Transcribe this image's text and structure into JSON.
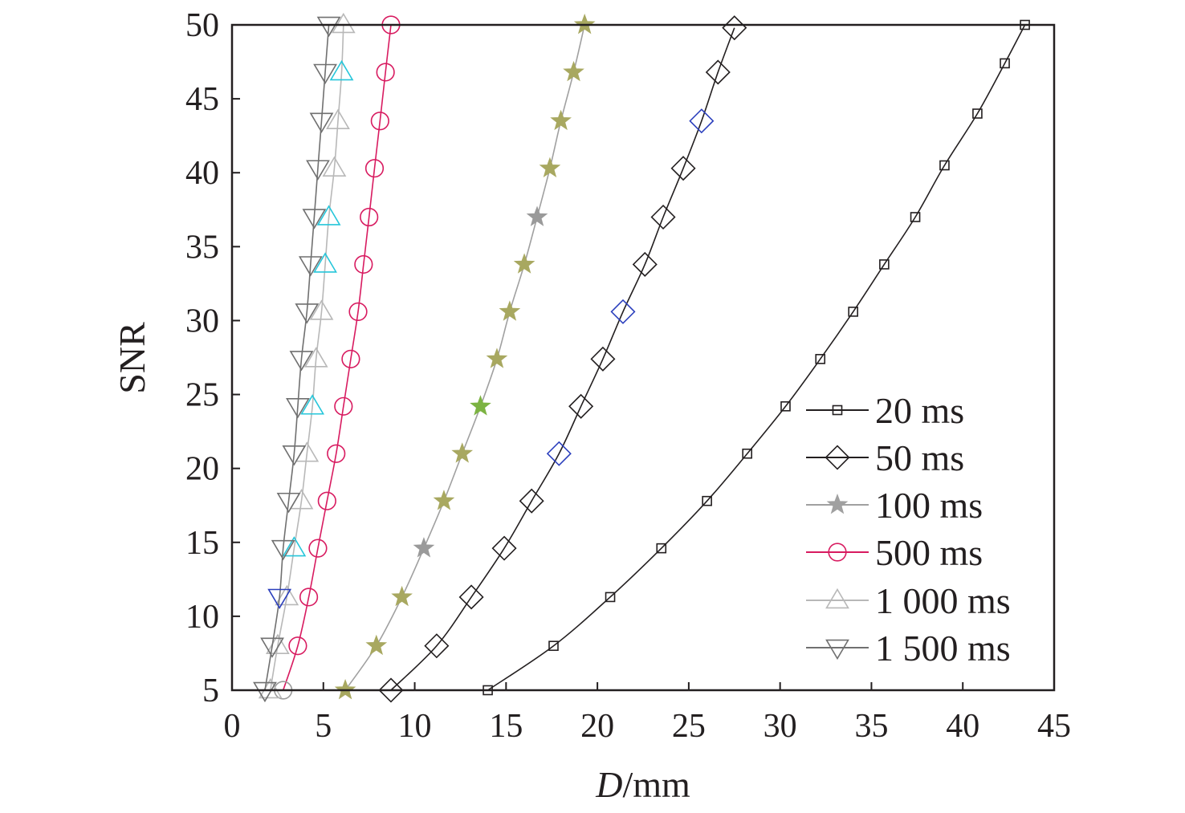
{
  "chart_data": {
    "type": "line",
    "xlabel_italic": "D",
    "xlabel_rest": "/mm",
    "ylabel": "SNR",
    "xlim": [
      0,
      45
    ],
    "ylim": [
      5,
      50
    ],
    "x_ticks": [
      0,
      5,
      10,
      15,
      20,
      25,
      30,
      35,
      40,
      45
    ],
    "y_ticks": [
      5,
      10,
      15,
      20,
      25,
      30,
      35,
      40,
      45,
      50
    ],
    "legend_position": "lower-right",
    "series": [
      {
        "name": "20 ms",
        "marker": "square",
        "color": "#231f20",
        "x": [
          14.0,
          17.6,
          20.7,
          23.5,
          26.0,
          28.2,
          30.3,
          32.2,
          34.0,
          35.7,
          37.4,
          39.0,
          40.8,
          42.3,
          43.4
        ],
        "y": [
          5.0,
          8.0,
          11.3,
          14.6,
          17.8,
          21.0,
          24.2,
          27.4,
          30.6,
          33.8,
          37.0,
          40.5,
          44.0,
          47.4,
          50.0
        ]
      },
      {
        "name": "50 ms",
        "marker": "diamond",
        "color": "#231f20",
        "x": [
          8.7,
          11.2,
          13.1,
          14.9,
          16.4,
          17.9,
          19.1,
          20.3,
          21.4,
          22.6,
          23.6,
          24.7,
          25.7,
          26.6,
          27.5
        ],
        "y": [
          5.0,
          8.0,
          11.3,
          14.6,
          17.8,
          21.0,
          24.2,
          27.4,
          30.6,
          33.8,
          37.0,
          40.3,
          43.5,
          46.8,
          49.8
        ],
        "marker_colors": [
          "#231f20",
          "#231f20",
          "#231f20",
          "#231f20",
          "#231f20",
          "#2b3fbd",
          "#231f20",
          "#231f20",
          "#2b3fbd",
          "#231f20",
          "#231f20",
          "#231f20",
          "#2b3fbd",
          "#231f20",
          "#231f20"
        ]
      },
      {
        "name": "100 ms",
        "marker": "star",
        "color": "#a0a0a0",
        "x": [
          6.2,
          7.9,
          9.3,
          10.5,
          11.6,
          12.6,
          13.6,
          14.5,
          15.2,
          16.0,
          16.7,
          17.4,
          18.0,
          18.7,
          19.3
        ],
        "y": [
          5.0,
          8.0,
          11.3,
          14.6,
          17.8,
          21.0,
          24.2,
          27.4,
          30.6,
          33.8,
          37.0,
          40.3,
          43.5,
          46.8,
          50.0
        ],
        "marker_colors": [
          "#a8a860",
          "#a8a860",
          "#a8a860",
          "#9a9a9a",
          "#a8a860",
          "#a8a860",
          "#7cb342",
          "#a8a860",
          "#a8a860",
          "#a8a860",
          "#9a9a9a",
          "#a8a860",
          "#a8a860",
          "#a8a860",
          "#a8a860"
        ]
      },
      {
        "name": "500 ms",
        "marker": "circle",
        "color": "#d81b60",
        "x": [
          2.8,
          3.6,
          4.2,
          4.7,
          5.2,
          5.7,
          6.1,
          6.5,
          6.9,
          7.2,
          7.5,
          7.8,
          8.1,
          8.4,
          8.7
        ],
        "y": [
          5.0,
          8.0,
          11.3,
          14.6,
          17.8,
          21.0,
          24.2,
          27.4,
          30.6,
          33.8,
          37.0,
          40.3,
          43.5,
          46.8,
          50.0
        ],
        "marker_colors": [
          "#9a9a9a",
          "#d81b60",
          "#d81b60",
          "#d81b60",
          "#d81b60",
          "#d81b60",
          "#d81b60",
          "#d81b60",
          "#d81b60",
          "#d81b60",
          "#d81b60",
          "#d81b60",
          "#d81b60",
          "#d81b60",
          "#d81b60"
        ]
      },
      {
        "name": "1 000 ms",
        "marker": "triangle-up",
        "color": "#b8b8b8",
        "x": [
          2.1,
          2.5,
          3.0,
          3.4,
          3.8,
          4.1,
          4.4,
          4.6,
          4.9,
          5.1,
          5.3,
          5.6,
          5.8,
          6.0,
          6.1
        ],
        "y": [
          5.0,
          8.0,
          11.3,
          14.6,
          17.8,
          21.0,
          24.2,
          27.4,
          30.6,
          33.8,
          37.0,
          40.3,
          43.5,
          46.8,
          50.0
        ],
        "marker_colors": [
          "#b8b8b8",
          "#b8b8b8",
          "#b8b8b8",
          "#26c6da",
          "#b8b8b8",
          "#b8b8b8",
          "#26c6da",
          "#b8b8b8",
          "#b8b8b8",
          "#26c6da",
          "#26c6da",
          "#b8b8b8",
          "#b8b8b8",
          "#26c6da",
          "#b8b8b8"
        ]
      },
      {
        "name": "1 500 ms",
        "marker": "triangle-down",
        "color": "#707070",
        "x": [
          1.8,
          2.2,
          2.6,
          2.8,
          3.1,
          3.4,
          3.6,
          3.8,
          4.1,
          4.3,
          4.5,
          4.7,
          4.9,
          5.1,
          5.3
        ],
        "y": [
          5.0,
          8.0,
          11.3,
          14.6,
          17.8,
          21.0,
          24.2,
          27.4,
          30.6,
          33.8,
          37.0,
          40.3,
          43.5,
          46.8,
          50.0
        ],
        "marker_colors": [
          "#707070",
          "#707070",
          "#2b3fbd",
          "#707070",
          "#707070",
          "#707070",
          "#707070",
          "#707070",
          "#707070",
          "#707070",
          "#707070",
          "#707070",
          "#707070",
          "#707070",
          "#707070"
        ]
      }
    ]
  }
}
